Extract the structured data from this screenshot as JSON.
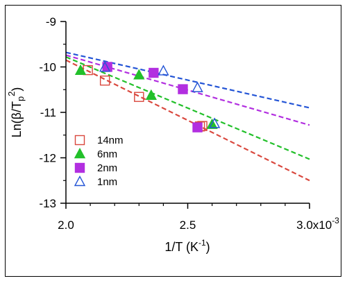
{
  "chart_data": {
    "type": "scatter",
    "xlabel_parts": {
      "main": "1/T (K",
      "sup": "-1",
      "end": ")"
    },
    "ylabel_parts": {
      "main": "Ln(β/T",
      "sub": "p",
      "sup": "2",
      "end": ")"
    },
    "xlim": [
      0.002,
      0.003
    ],
    "ylim": [
      -13,
      -9
    ],
    "x_ticks": [
      {
        "value": 0.002,
        "label": "2.0"
      },
      {
        "value": 0.0025,
        "label": "2.5"
      },
      {
        "value": 0.003,
        "label": "3.0x10",
        "sup": "-3"
      }
    ],
    "y_ticks": [
      {
        "value": -9,
        "label": "-9"
      },
      {
        "value": -10,
        "label": "-10"
      },
      {
        "value": -11,
        "label": "-11"
      },
      {
        "value": -12,
        "label": "-12"
      },
      {
        "value": -13,
        "label": "-13"
      }
    ],
    "grid": false,
    "legend_position": "lower-left",
    "series": [
      {
        "name": "14nm",
        "marker": "square-open",
        "color": "#d9473d",
        "points": [
          [
            0.00209,
            -10.07
          ],
          [
            0.00216,
            -10.3
          ],
          [
            0.0023,
            -10.66
          ],
          [
            0.00255,
            -11.31
          ],
          [
            0.00256,
            -11.3
          ]
        ],
        "fit": [
          [
            0.002,
            -9.85
          ],
          [
            0.003,
            -12.5
          ]
        ]
      },
      {
        "name": "6nm",
        "marker": "triangle-filled",
        "color": "#22c02a",
        "points": [
          [
            0.00206,
            -10.08
          ],
          [
            0.0023,
            -10.18
          ],
          [
            0.00235,
            -10.63
          ],
          [
            0.0026,
            -11.27
          ]
        ],
        "fit": [
          [
            0.002,
            -9.78
          ],
          [
            0.003,
            -12.03
          ]
        ]
      },
      {
        "name": "2nm",
        "marker": "square-filled",
        "color": "#b22fe0",
        "points": [
          [
            0.00217,
            -10.0
          ],
          [
            0.00236,
            -10.13
          ],
          [
            0.00248,
            -10.49
          ],
          [
            0.00254,
            -11.33
          ]
        ],
        "fit": [
          [
            0.002,
            -9.74
          ],
          [
            0.003,
            -11.28
          ]
        ]
      },
      {
        "name": "1nm",
        "marker": "triangle-open",
        "color": "#2455d6",
        "points": [
          [
            0.00216,
            -10.01
          ],
          [
            0.0024,
            -10.09
          ],
          [
            0.00254,
            -10.46
          ],
          [
            0.00261,
            -11.25
          ]
        ],
        "fit": [
          [
            0.002,
            -9.68
          ],
          [
            0.003,
            -10.9
          ]
        ]
      }
    ]
  }
}
